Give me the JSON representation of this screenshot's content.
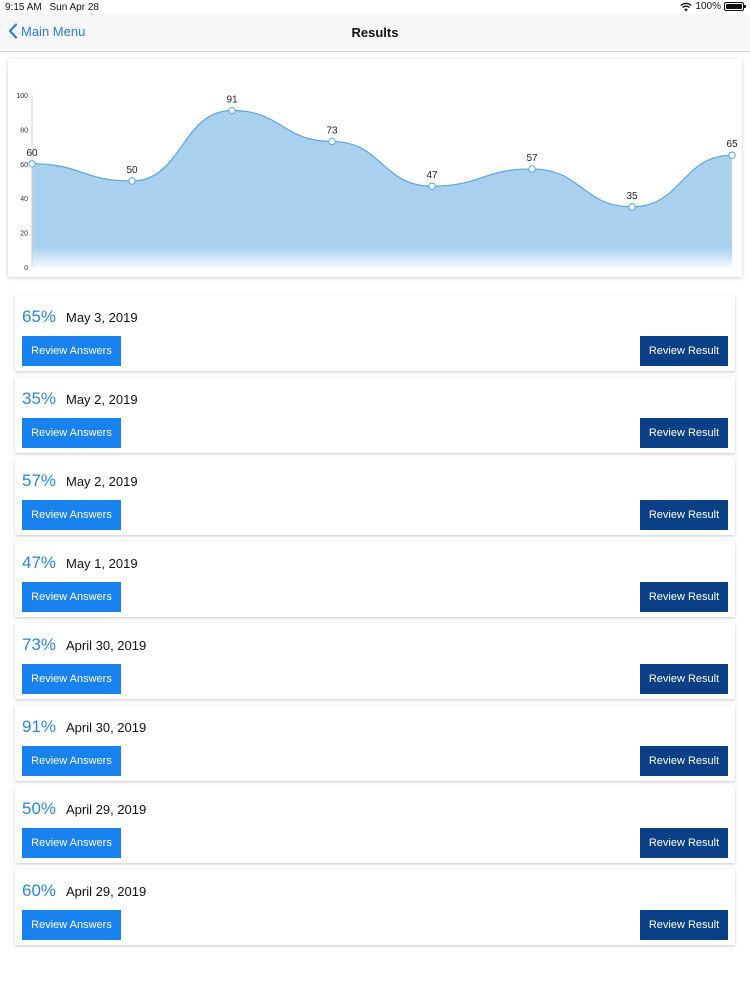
{
  "status_bar": {
    "time": "9:15 AM",
    "date": "Sun Apr 28",
    "battery": "100%"
  },
  "nav": {
    "back_label": "Main Menu",
    "title": "Results"
  },
  "chart_data": {
    "type": "area",
    "x": [
      1,
      2,
      3,
      4,
      5,
      6,
      7,
      8
    ],
    "values": [
      60,
      50,
      91,
      73,
      47,
      57,
      35,
      65
    ],
    "data_labels": [
      "60",
      "50",
      "91",
      "73",
      "47",
      "57",
      "35",
      "65"
    ],
    "yticks": [
      "0",
      "20",
      "40",
      "60",
      "80",
      "100"
    ],
    "ylim": [
      0,
      100
    ],
    "grid": false,
    "fill_color": "#a9d1ef",
    "line_color": "#5aa6de"
  },
  "results": [
    {
      "percent": "65%",
      "date": "May 3, 2019",
      "review_answers_label": "Review Answers",
      "review_result_label": "Review Result"
    },
    {
      "percent": "35%",
      "date": "May 2, 2019",
      "review_answers_label": "Review Answers",
      "review_result_label": "Review Result"
    },
    {
      "percent": "57%",
      "date": "May 2, 2019",
      "review_answers_label": "Review Answers",
      "review_result_label": "Review Result"
    },
    {
      "percent": "47%",
      "date": "May 1, 2019",
      "review_answers_label": "Review Answers",
      "review_result_label": "Review Result"
    },
    {
      "percent": "73%",
      "date": "April 30, 2019",
      "review_answers_label": "Review Answers",
      "review_result_label": "Review Result"
    },
    {
      "percent": "91%",
      "date": "April 30, 2019",
      "review_answers_label": "Review Answers",
      "review_result_label": "Review Result"
    },
    {
      "percent": "50%",
      "date": "April 29, 2019",
      "review_answers_label": "Review Answers",
      "review_result_label": "Review Result"
    },
    {
      "percent": "60%",
      "date": "April 29, 2019",
      "review_answers_label": "Review Answers",
      "review_result_label": "Review Result"
    }
  ],
  "colors": {
    "accent": "#1a82ee",
    "dark_button": "#0b3f86",
    "percent_text": "#2a86d6"
  }
}
